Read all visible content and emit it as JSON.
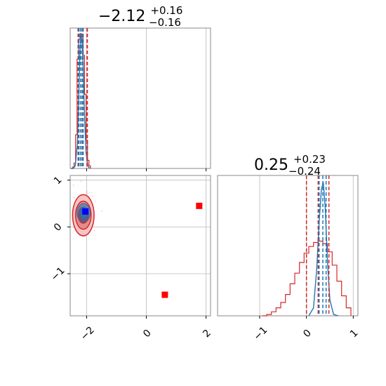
{
  "chart_data": {
    "type": "corner",
    "colors": {
      "red": "#d62728",
      "blue": "#1f77b4",
      "marker_blue": "#0000ff",
      "marker_red": "#ff0000",
      "grid": "#c8c8c8",
      "axis": "#888888"
    },
    "grid": true,
    "xlim": [
      -2.55,
      2.15
    ],
    "ylim": [
      -1.9,
      1.1
    ],
    "diag_y_xlim": [
      -1.9,
      1.1
    ],
    "titles": {
      "param_x": {
        "median": "−2.12",
        "plus": "+0.16",
        "minus": "−0.16"
      },
      "param_y": {
        "median": "0.25",
        "plus": "+0.23",
        "minus": "−0.24"
      }
    },
    "x_ticks": [
      {
        "value": -2,
        "label": "−2"
      },
      {
        "value": 0,
        "label": "0"
      },
      {
        "value": 2,
        "label": "2"
      }
    ],
    "y_ticks": [
      {
        "value": 1,
        "label": "1"
      },
      {
        "value": 0,
        "label": "0"
      },
      {
        "value": -1,
        "label": "−1"
      }
    ],
    "diag_y_ticks": [
      {
        "value": -1,
        "label": "−1"
      },
      {
        "value": 0,
        "label": "0"
      },
      {
        "value": 1,
        "label": "1"
      }
    ],
    "hist_x": {
      "red_step": [
        [
          -2.52,
          0.0
        ],
        [
          -2.47,
          0.01
        ],
        [
          -2.42,
          0.04
        ],
        [
          -2.37,
          0.25
        ],
        [
          -2.32,
          0.81
        ],
        [
          -2.27,
          0.96
        ],
        [
          -2.22,
          1.0
        ],
        [
          -2.17,
          0.98
        ],
        [
          -2.12,
          0.84
        ],
        [
          -2.07,
          0.55
        ],
        [
          -2.02,
          0.21
        ],
        [
          -1.97,
          0.06
        ],
        [
          -1.92,
          0.02
        ],
        [
          -1.87,
          0.0
        ]
      ],
      "red_quantiles": [
        -2.28,
        -2.13,
        -1.98
      ],
      "blue_curve": [
        [
          -2.52,
          0.0
        ],
        [
          -2.45,
          0.0
        ],
        [
          -2.38,
          0.02
        ],
        [
          -2.31,
          0.18
        ],
        [
          -2.26,
          0.55
        ],
        [
          -2.22,
          0.88
        ],
        [
          -2.19,
          0.99
        ],
        [
          -2.16,
          0.97
        ],
        [
          -2.12,
          0.78
        ],
        [
          -2.07,
          0.4
        ],
        [
          -2.02,
          0.12
        ],
        [
          -1.96,
          0.02
        ],
        [
          -1.9,
          0.0
        ]
      ],
      "blue_quantiles": [
        -2.26,
        -2.19,
        -2.12
      ]
    },
    "hist_y": {
      "red_step": [
        [
          -0.95,
          0.0
        ],
        [
          -0.85,
          0.01
        ],
        [
          -0.75,
          0.03
        ],
        [
          -0.65,
          0.06
        ],
        [
          -0.55,
          0.1
        ],
        [
          -0.45,
          0.16
        ],
        [
          -0.35,
          0.24
        ],
        [
          -0.25,
          0.32
        ],
        [
          -0.15,
          0.4
        ],
        [
          -0.05,
          0.47
        ],
        [
          0.05,
          0.52
        ],
        [
          0.15,
          0.55
        ],
        [
          0.25,
          0.56
        ],
        [
          0.35,
          0.54
        ],
        [
          0.45,
          0.48
        ],
        [
          0.55,
          0.38
        ],
        [
          0.65,
          0.26
        ],
        [
          0.75,
          0.15
        ],
        [
          0.85,
          0.06
        ],
        [
          0.95,
          0.0
        ]
      ],
      "red_quantiles": [
        0.0,
        0.25,
        0.48
      ],
      "blue_curve": [
        [
          0.05,
          0.0
        ],
        [
          0.15,
          0.06
        ],
        [
          0.22,
          0.35
        ],
        [
          0.27,
          0.7
        ],
        [
          0.32,
          0.95
        ],
        [
          0.36,
          1.0
        ],
        [
          0.4,
          0.82
        ],
        [
          0.45,
          0.4
        ],
        [
          0.5,
          0.12
        ],
        [
          0.58,
          0.01
        ],
        [
          0.68,
          0.0
        ]
      ],
      "blue_quantiles": [
        0.27,
        0.35,
        0.42
      ]
    },
    "scatter_2d": {
      "red_contour_center": [
        -2.11,
        0.25
      ],
      "red_contour_radii": [
        {
          "level": 0.3,
          "rx": 0.17,
          "ry": 0.17
        },
        {
          "level": 0.6,
          "rx": 0.26,
          "ry": 0.3
        },
        {
          "level": 0.9,
          "rx": 0.36,
          "ry": 0.44
        }
      ],
      "blue_contour_center": [
        -2.1,
        0.3
      ],
      "blue_contour_radii": [
        {
          "level": 0.5,
          "rx": 0.1,
          "ry": 0.12
        },
        {
          "level": 0.9,
          "rx": 0.22,
          "ry": 0.2
        }
      ],
      "markers": [
        {
          "x": -2.04,
          "y": 0.33,
          "color": "blue"
        },
        {
          "x": 0.62,
          "y": -1.45,
          "color": "red"
        },
        {
          "x": 1.77,
          "y": 0.45,
          "color": "red"
        }
      ]
    }
  }
}
